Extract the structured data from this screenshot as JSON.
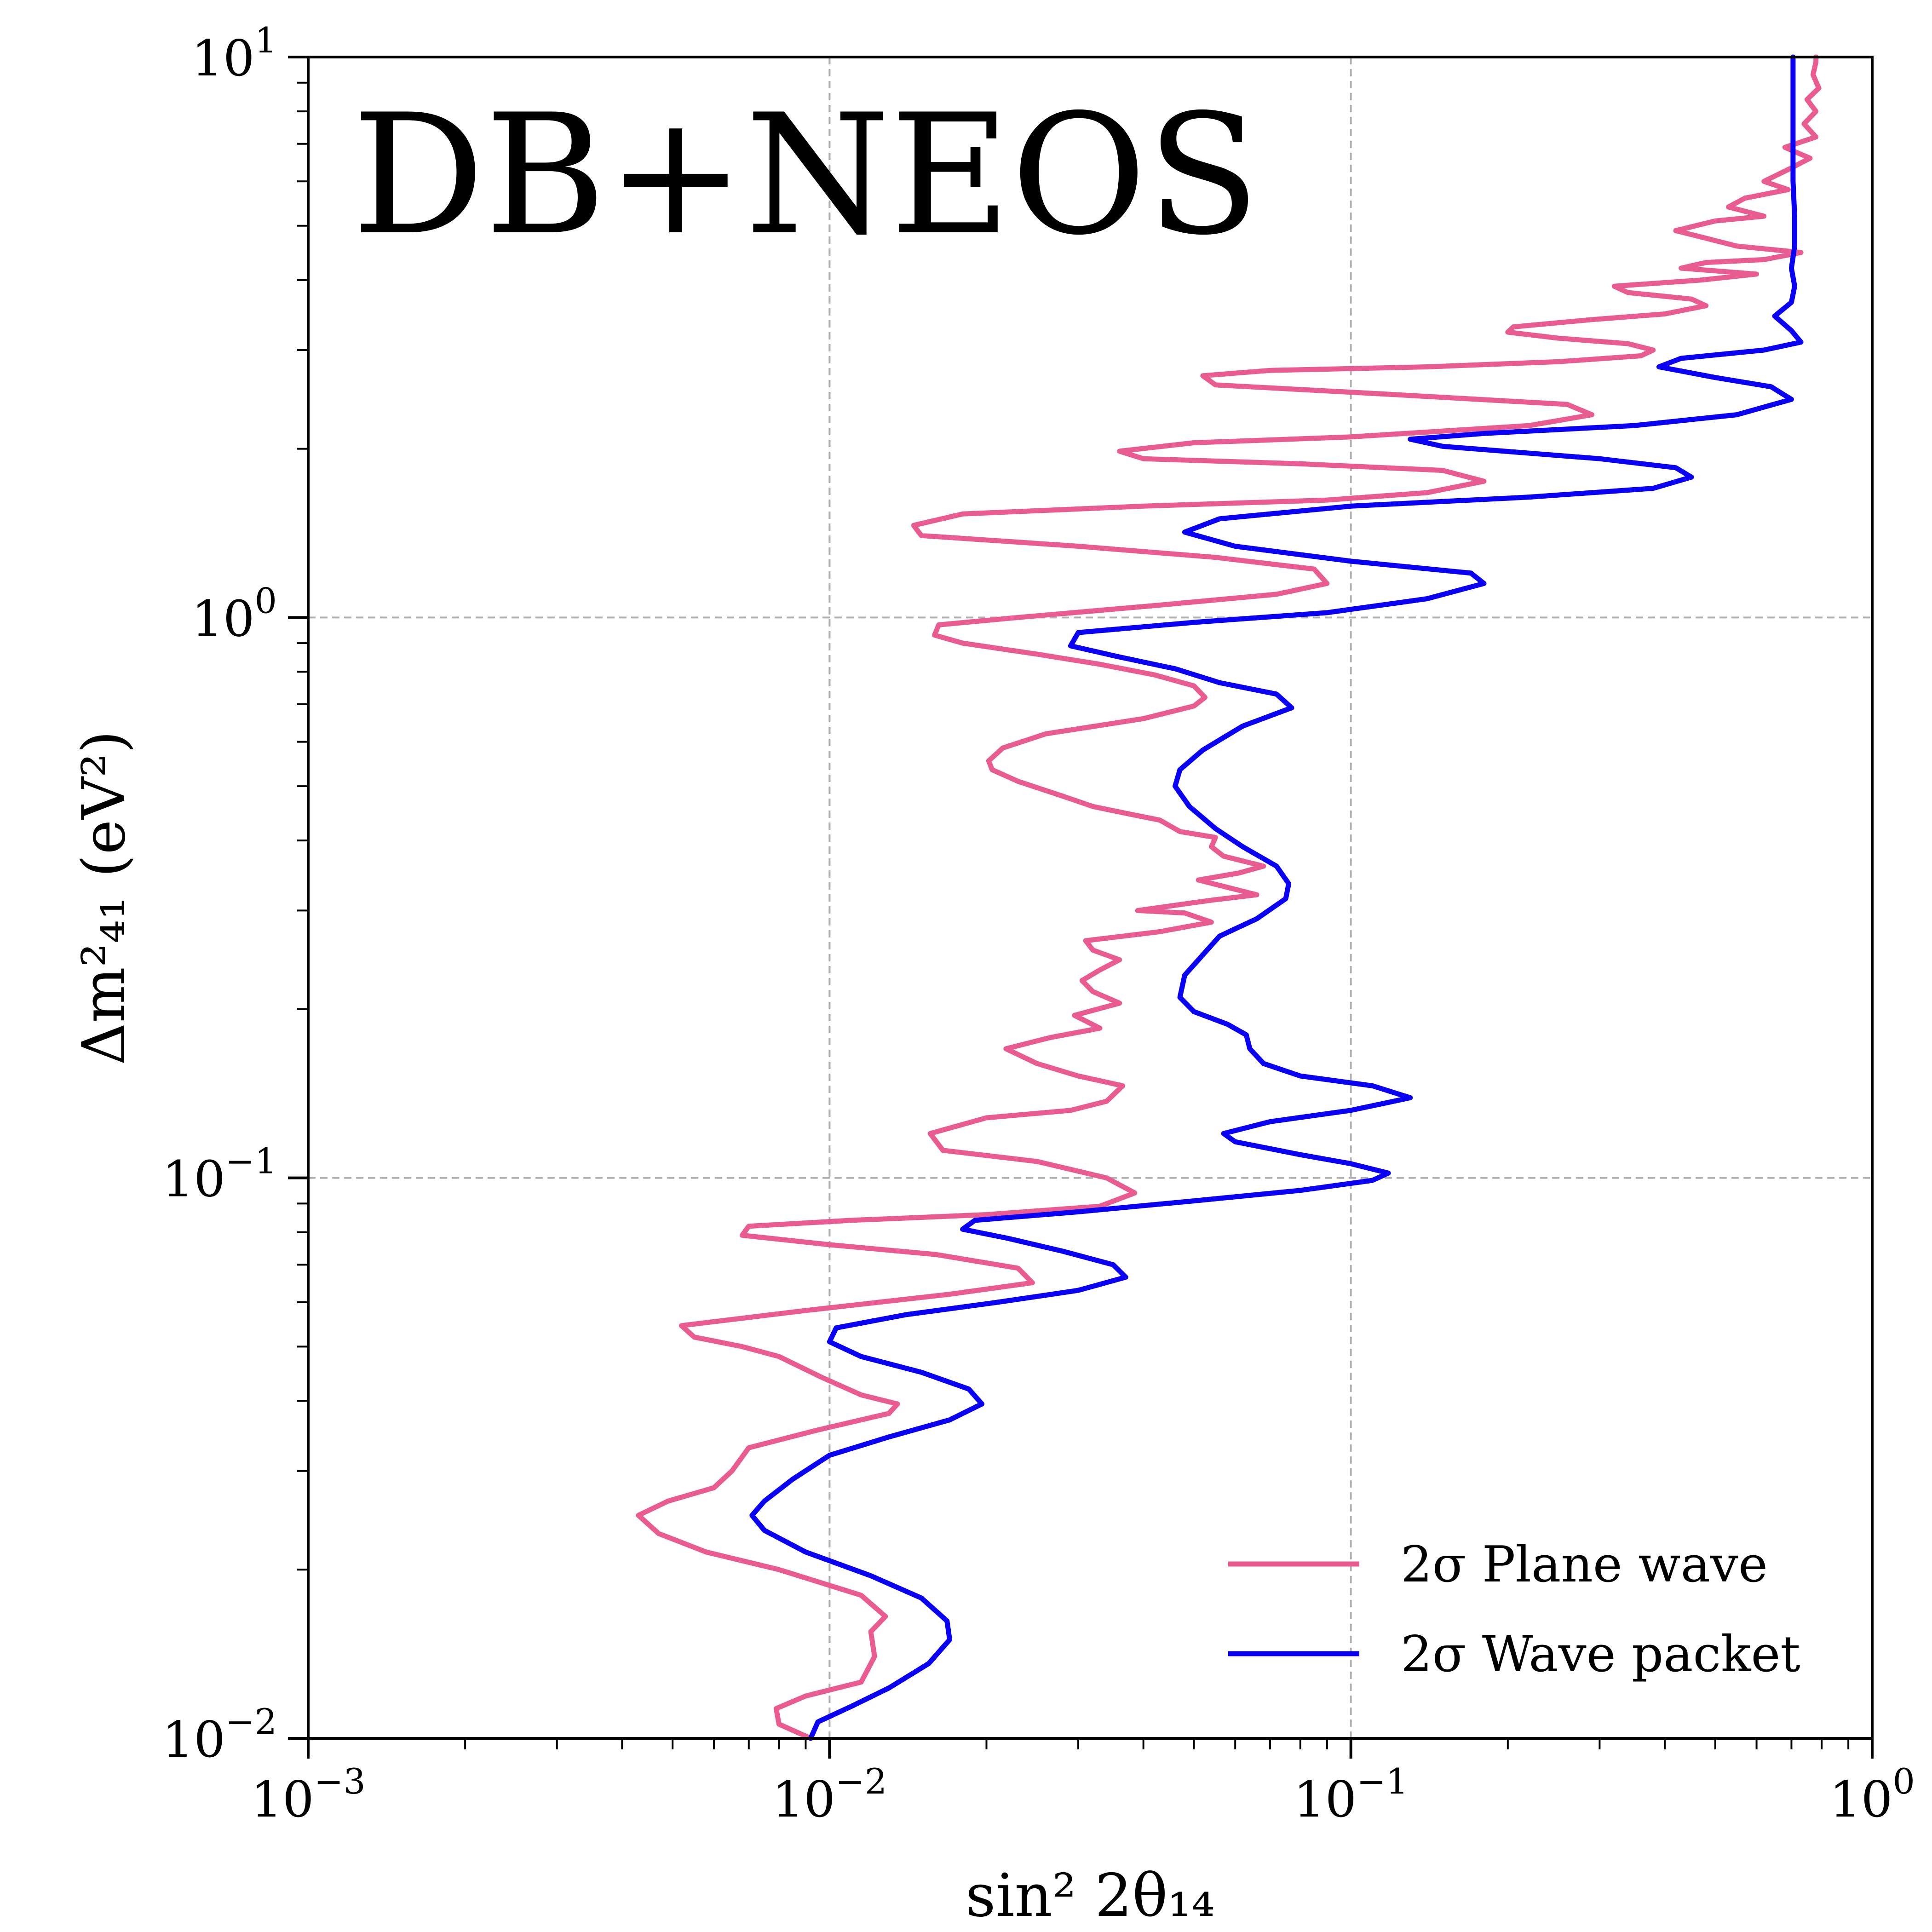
{
  "chart_data": {
    "type": "line",
    "title": "DB+NEOS",
    "xlabel": "sin² 2θ₁₄",
    "ylabel": "Δm²₄₁ (eV²)",
    "xscale": "log",
    "yscale": "log",
    "xlim": [
      0.001,
      1
    ],
    "ylim": [
      0.01,
      10
    ],
    "grid": true,
    "legend_position": "bottom-right",
    "x_ticks": [
      {
        "value": 0.001,
        "base": "10",
        "exp": "−3"
      },
      {
        "value": 0.01,
        "base": "10",
        "exp": "−2"
      },
      {
        "value": 0.1,
        "base": "10",
        "exp": "−1"
      },
      {
        "value": 1,
        "base": "10",
        "exp": "0"
      }
    ],
    "y_ticks": [
      {
        "value": 0.01,
        "base": "10",
        "exp": "−2"
      },
      {
        "value": 0.1,
        "base": "10",
        "exp": "−1"
      },
      {
        "value": 1,
        "base": "10",
        "exp": "0"
      },
      {
        "value": 10,
        "base": "10",
        "exp": "1"
      }
    ],
    "series": [
      {
        "name": "2σ Plane wave",
        "color": "#e85c92",
        "points": [
          [
            0.0092,
            0.01
          ],
          [
            0.008,
            0.0106
          ],
          [
            0.0079,
            0.0113
          ],
          [
            0.009,
            0.0119
          ],
          [
            0.0115,
            0.0126
          ],
          [
            0.0122,
            0.014
          ],
          [
            0.012,
            0.0155
          ],
          [
            0.0128,
            0.0165
          ],
          [
            0.0115,
            0.018
          ],
          [
            0.008,
            0.02
          ],
          [
            0.0058,
            0.0215
          ],
          [
            0.0047,
            0.0232
          ],
          [
            0.0043,
            0.025
          ],
          [
            0.0049,
            0.0265
          ],
          [
            0.006,
            0.028
          ],
          [
            0.0065,
            0.03
          ],
          [
            0.007,
            0.033
          ],
          [
            0.0095,
            0.0355
          ],
          [
            0.013,
            0.038
          ],
          [
            0.0135,
            0.0395
          ],
          [
            0.0115,
            0.041
          ],
          [
            0.0097,
            0.044
          ],
          [
            0.008,
            0.048
          ],
          [
            0.0068,
            0.05
          ],
          [
            0.0055,
            0.052
          ],
          [
            0.0052,
            0.0545
          ],
          [
            0.009,
            0.058
          ],
          [
            0.017,
            0.062
          ],
          [
            0.0245,
            0.065
          ],
          [
            0.023,
            0.069
          ],
          [
            0.016,
            0.073
          ],
          [
            0.01,
            0.076
          ],
          [
            0.0068,
            0.079
          ],
          [
            0.007,
            0.082
          ],
          [
            0.011,
            0.084
          ],
          [
            0.02,
            0.086
          ],
          [
            0.033,
            0.089
          ],
          [
            0.0385,
            0.094
          ],
          [
            0.034,
            0.1
          ],
          [
            0.025,
            0.107
          ],
          [
            0.0165,
            0.112
          ],
          [
            0.0156,
            0.12
          ],
          [
            0.02,
            0.128
          ],
          [
            0.029,
            0.132
          ],
          [
            0.034,
            0.137
          ],
          [
            0.0365,
            0.146
          ],
          [
            0.03,
            0.152
          ],
          [
            0.025,
            0.16
          ],
          [
            0.0218,
            0.17
          ],
          [
            0.0265,
            0.178
          ],
          [
            0.033,
            0.185
          ],
          [
            0.0295,
            0.195
          ],
          [
            0.036,
            0.205
          ],
          [
            0.032,
            0.215
          ],
          [
            0.0305,
            0.225
          ],
          [
            0.033,
            0.235
          ],
          [
            0.036,
            0.245
          ],
          [
            0.032,
            0.255
          ],
          [
            0.031,
            0.265
          ],
          [
            0.043,
            0.275
          ],
          [
            0.054,
            0.286
          ],
          [
            0.048,
            0.297
          ],
          [
            0.039,
            0.3
          ],
          [
            0.054,
            0.313
          ],
          [
            0.066,
            0.32
          ],
          [
            0.051,
            0.34
          ],
          [
            0.061,
            0.35
          ],
          [
            0.068,
            0.36
          ],
          [
            0.057,
            0.375
          ],
          [
            0.054,
            0.39
          ],
          [
            0.055,
            0.405
          ],
          [
            0.047,
            0.415
          ],
          [
            0.043,
            0.435
          ],
          [
            0.038,
            0.445
          ],
          [
            0.032,
            0.46
          ],
          [
            0.028,
            0.48
          ],
          [
            0.023,
            0.51
          ],
          [
            0.0205,
            0.535
          ],
          [
            0.0202,
            0.555
          ],
          [
            0.0215,
            0.585
          ],
          [
            0.026,
            0.62
          ],
          [
            0.04,
            0.66
          ],
          [
            0.05,
            0.695
          ],
          [
            0.0525,
            0.72
          ],
          [
            0.05,
            0.755
          ],
          [
            0.042,
            0.79
          ],
          [
            0.033,
            0.825
          ],
          [
            0.025,
            0.86
          ],
          [
            0.018,
            0.9
          ],
          [
            0.0159,
            0.93
          ],
          [
            0.0162,
            0.97
          ],
          [
            0.023,
            1.0
          ],
          [
            0.042,
            1.05
          ],
          [
            0.072,
            1.1
          ],
          [
            0.09,
            1.15
          ],
          [
            0.085,
            1.22
          ],
          [
            0.055,
            1.28
          ],
          [
            0.03,
            1.34
          ],
          [
            0.015,
            1.4
          ],
          [
            0.0145,
            1.46
          ],
          [
            0.018,
            1.53
          ],
          [
            0.04,
            1.58
          ],
          [
            0.09,
            1.62
          ],
          [
            0.14,
            1.67
          ],
          [
            0.18,
            1.75
          ],
          [
            0.15,
            1.83
          ],
          [
            0.08,
            1.88
          ],
          [
            0.04,
            1.92
          ],
          [
            0.036,
            1.98
          ],
          [
            0.05,
            2.05
          ],
          [
            0.1,
            2.1
          ],
          [
            0.22,
            2.2
          ],
          [
            0.29,
            2.3
          ],
          [
            0.26,
            2.4
          ],
          [
            0.12,
            2.5
          ],
          [
            0.055,
            2.6
          ],
          [
            0.052,
            2.7
          ],
          [
            0.07,
            2.76
          ],
          [
            0.14,
            2.8
          ],
          [
            0.25,
            2.86
          ],
          [
            0.36,
            2.93
          ],
          [
            0.38,
            3.0
          ],
          [
            0.34,
            3.08
          ],
          [
            0.25,
            3.15
          ],
          [
            0.2,
            3.23
          ],
          [
            0.205,
            3.3
          ],
          [
            0.29,
            3.4
          ],
          [
            0.4,
            3.48
          ],
          [
            0.48,
            3.6
          ],
          [
            0.45,
            3.7
          ],
          [
            0.34,
            3.8
          ],
          [
            0.32,
            3.9
          ],
          [
            0.47,
            4.0
          ],
          [
            0.6,
            4.1
          ],
          [
            0.43,
            4.2
          ],
          [
            0.48,
            4.3
          ],
          [
            0.62,
            4.35
          ],
          [
            0.73,
            4.48
          ],
          [
            0.55,
            4.6
          ],
          [
            0.48,
            4.75
          ],
          [
            0.42,
            4.9
          ],
          [
            0.5,
            5.1
          ],
          [
            0.62,
            5.2
          ],
          [
            0.53,
            5.4
          ],
          [
            0.57,
            5.6
          ],
          [
            0.69,
            5.8
          ],
          [
            0.62,
            6.0
          ],
          [
            0.69,
            6.3
          ],
          [
            0.76,
            6.6
          ],
          [
            0.68,
            6.9
          ],
          [
            0.78,
            7.2
          ],
          [
            0.74,
            7.6
          ],
          [
            0.78,
            8.0
          ],
          [
            0.75,
            8.4
          ],
          [
            0.79,
            8.8
          ],
          [
            0.77,
            9.3
          ],
          [
            0.78,
            9.8
          ],
          [
            0.78,
            10.0
          ]
        ]
      },
      {
        "name": "2σ Wave packet",
        "color": "#0a00f5",
        "points": [
          [
            0.0092,
            0.01
          ],
          [
            0.0095,
            0.0107
          ],
          [
            0.011,
            0.0114
          ],
          [
            0.013,
            0.0123
          ],
          [
            0.0155,
            0.0136
          ],
          [
            0.017,
            0.015
          ],
          [
            0.0168,
            0.0162
          ],
          [
            0.015,
            0.0178
          ],
          [
            0.012,
            0.0195
          ],
          [
            0.009,
            0.0215
          ],
          [
            0.0075,
            0.0235
          ],
          [
            0.0071,
            0.025
          ],
          [
            0.0075,
            0.0265
          ],
          [
            0.0085,
            0.029
          ],
          [
            0.01,
            0.032
          ],
          [
            0.013,
            0.0345
          ],
          [
            0.017,
            0.037
          ],
          [
            0.0196,
            0.0395
          ],
          [
            0.0185,
            0.042
          ],
          [
            0.015,
            0.045
          ],
          [
            0.0115,
            0.048
          ],
          [
            0.01,
            0.051
          ],
          [
            0.0103,
            0.054
          ],
          [
            0.014,
            0.057
          ],
          [
            0.021,
            0.06
          ],
          [
            0.03,
            0.063
          ],
          [
            0.037,
            0.0665
          ],
          [
            0.035,
            0.07
          ],
          [
            0.028,
            0.074
          ],
          [
            0.022,
            0.078
          ],
          [
            0.018,
            0.081
          ],
          [
            0.019,
            0.084
          ],
          [
            0.03,
            0.087
          ],
          [
            0.05,
            0.091
          ],
          [
            0.08,
            0.095
          ],
          [
            0.11,
            0.099
          ],
          [
            0.118,
            0.102
          ],
          [
            0.1,
            0.106
          ],
          [
            0.08,
            0.11
          ],
          [
            0.06,
            0.116
          ],
          [
            0.057,
            0.12
          ],
          [
            0.07,
            0.126
          ],
          [
            0.1,
            0.132
          ],
          [
            0.13,
            0.139
          ],
          [
            0.11,
            0.146
          ],
          [
            0.08,
            0.152
          ],
          [
            0.068,
            0.16
          ],
          [
            0.064,
            0.17
          ],
          [
            0.063,
            0.18
          ],
          [
            0.058,
            0.188
          ],
          [
            0.05,
            0.198
          ],
          [
            0.047,
            0.21
          ],
          [
            0.048,
            0.23
          ],
          [
            0.052,
            0.25
          ],
          [
            0.056,
            0.27
          ],
          [
            0.066,
            0.29
          ],
          [
            0.075,
            0.315
          ],
          [
            0.076,
            0.335
          ],
          [
            0.072,
            0.36
          ],
          [
            0.062,
            0.39
          ],
          [
            0.055,
            0.42
          ],
          [
            0.049,
            0.46
          ],
          [
            0.046,
            0.5
          ],
          [
            0.047,
            0.535
          ],
          [
            0.052,
            0.58
          ],
          [
            0.062,
            0.64
          ],
          [
            0.077,
            0.69
          ],
          [
            0.072,
            0.73
          ],
          [
            0.056,
            0.765
          ],
          [
            0.046,
            0.81
          ],
          [
            0.036,
            0.85
          ],
          [
            0.029,
            0.89
          ],
          [
            0.03,
            0.94
          ],
          [
            0.05,
            0.98
          ],
          [
            0.09,
            1.02
          ],
          [
            0.14,
            1.08
          ],
          [
            0.18,
            1.15
          ],
          [
            0.17,
            1.2
          ],
          [
            0.1,
            1.26
          ],
          [
            0.06,
            1.34
          ],
          [
            0.048,
            1.42
          ],
          [
            0.056,
            1.5
          ],
          [
            0.1,
            1.58
          ],
          [
            0.22,
            1.64
          ],
          [
            0.38,
            1.7
          ],
          [
            0.45,
            1.78
          ],
          [
            0.42,
            1.85
          ],
          [
            0.3,
            1.92
          ],
          [
            0.15,
            2.02
          ],
          [
            0.13,
            2.08
          ],
          [
            0.18,
            2.13
          ],
          [
            0.35,
            2.2
          ],
          [
            0.55,
            2.3
          ],
          [
            0.7,
            2.45
          ],
          [
            0.64,
            2.58
          ],
          [
            0.5,
            2.68
          ],
          [
            0.39,
            2.8
          ],
          [
            0.43,
            2.9
          ],
          [
            0.62,
            3.0
          ],
          [
            0.73,
            3.1
          ],
          [
            0.7,
            3.25
          ],
          [
            0.65,
            3.45
          ],
          [
            0.7,
            3.65
          ],
          [
            0.71,
            3.9
          ],
          [
            0.7,
            4.2
          ],
          [
            0.71,
            4.6
          ],
          [
            0.71,
            5.2
          ],
          [
            0.705,
            6.0
          ],
          [
            0.705,
            7.0
          ],
          [
            0.705,
            8.5
          ],
          [
            0.705,
            10.0
          ]
        ]
      }
    ]
  }
}
